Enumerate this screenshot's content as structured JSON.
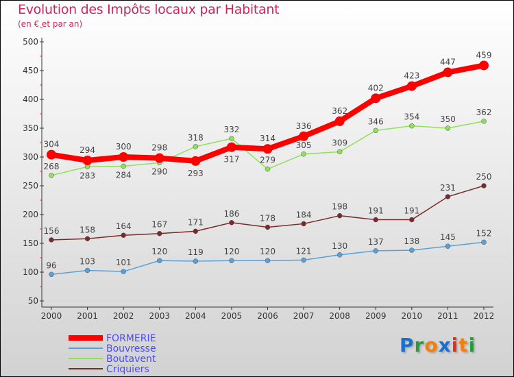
{
  "chart_data": {
    "type": "line",
    "title": "Evolution des Impôts locaux par Habitant",
    "subtitle": "(en € et par an)",
    "x": [
      "2000",
      "2001",
      "2002",
      "2003",
      "2004",
      "2005",
      "2006",
      "2007",
      "2008",
      "2009",
      "2010",
      "2011",
      "2012"
    ],
    "ylim": [
      50,
      500
    ],
    "yticks": [
      "50",
      "100",
      "150",
      "200",
      "250",
      "300",
      "350",
      "400",
      "450",
      "500"
    ],
    "series": [
      {
        "name": "FORMERIE",
        "color": "#ff0000",
        "values": [
          304,
          294,
          300,
          298,
          293,
          317,
          314,
          336,
          362,
          402,
          423,
          447,
          459
        ]
      },
      {
        "name": "Bouvresse",
        "color": "#5aa0d8",
        "values": [
          96,
          103,
          101,
          120,
          119,
          120,
          120,
          121,
          130,
          137,
          138,
          145,
          152
        ]
      },
      {
        "name": "Boutavent",
        "color": "#8ee05a",
        "values": [
          268,
          283,
          284,
          290,
          318,
          332,
          279,
          305,
          309,
          346,
          354,
          350,
          362
        ]
      },
      {
        "name": "Criquiers",
        "color": "#7a2a2a",
        "values": [
          156,
          158,
          164,
          167,
          171,
          186,
          178,
          184,
          198,
          191,
          191,
          231,
          250
        ]
      }
    ],
    "legend": "bottom-left"
  },
  "logo": "Proxiti"
}
